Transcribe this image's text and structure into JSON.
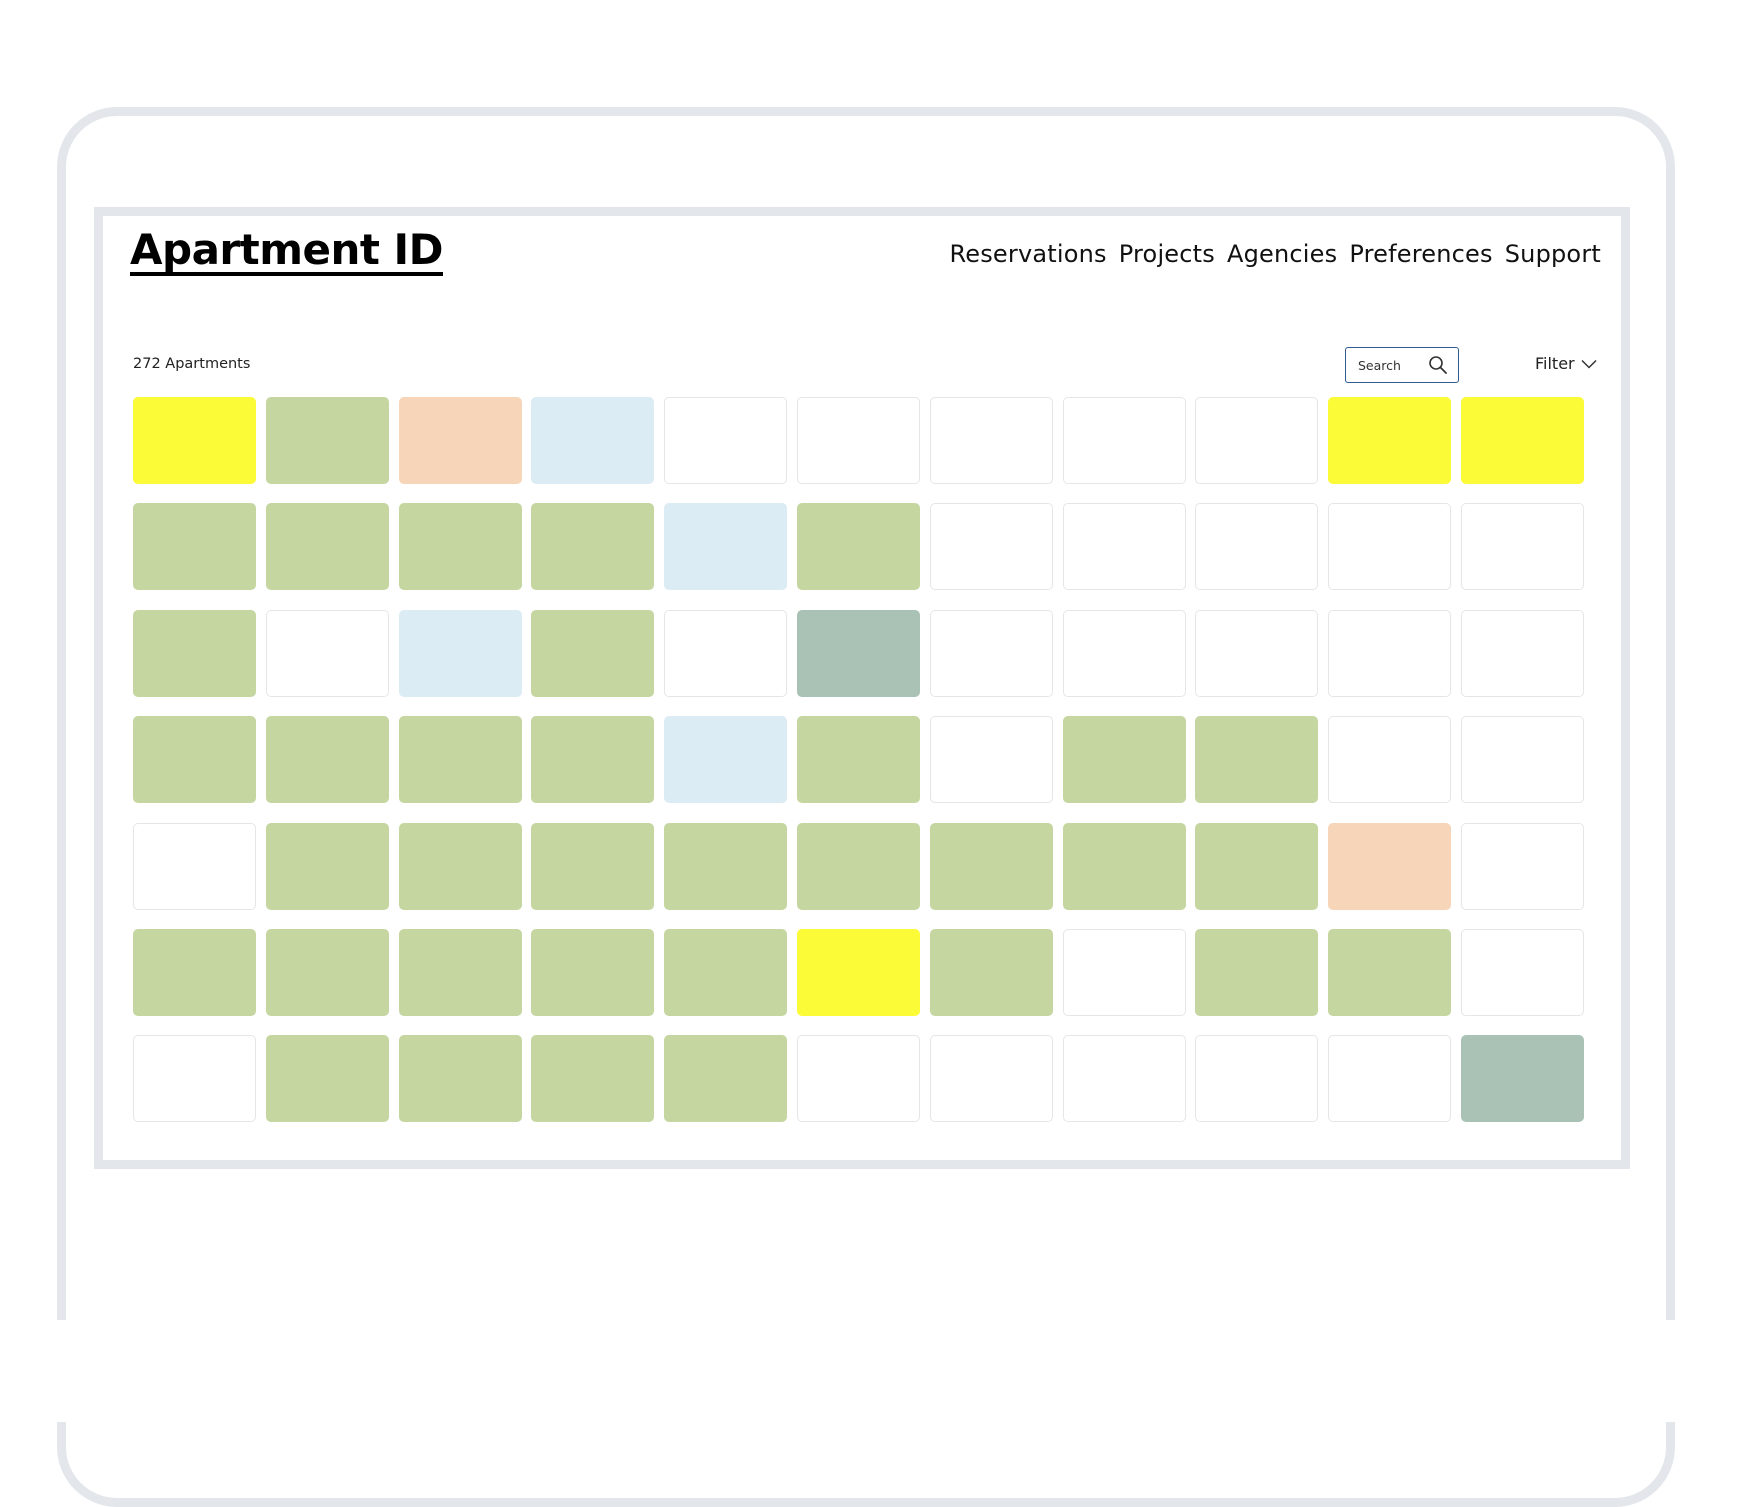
{
  "app": {
    "logo": "Apartment ID"
  },
  "nav": [
    {
      "label": "Reservations"
    },
    {
      "label": "Projects"
    },
    {
      "label": "Agencies"
    },
    {
      "label": "Preferences"
    },
    {
      "label": "Support"
    }
  ],
  "toolbar": {
    "count_label": "272 Apartments",
    "search_placeholder": "Search",
    "search_icon": "search-icon",
    "filter_label": "Filter",
    "filter_icon": "chevron-down-icon"
  },
  "status_colors": {
    "available": "#c5d6a0",
    "reserved": "#fbfb38",
    "pending": "#f7d5b9",
    "held": "#dcecf4",
    "sold": "#a9c2b5",
    "empty": "#ffffff"
  },
  "grid": {
    "columns": 11,
    "rows": [
      [
        "reserved",
        "available",
        "pending",
        "held",
        "empty",
        "empty",
        "empty",
        "empty",
        "empty",
        "reserved",
        "reserved"
      ],
      [
        "available",
        "available",
        "available",
        "available",
        "held",
        "available",
        "empty",
        "empty",
        "empty",
        "empty",
        "empty"
      ],
      [
        "available",
        "empty",
        "held",
        "available",
        "empty",
        "sold",
        "empty",
        "empty",
        "empty",
        "empty",
        "empty"
      ],
      [
        "available",
        "available",
        "available",
        "available",
        "held",
        "available",
        "empty",
        "available",
        "available",
        "empty",
        "empty"
      ],
      [
        "empty",
        "available",
        "available",
        "available",
        "available",
        "available",
        "available",
        "available",
        "available",
        "pending",
        "empty"
      ],
      [
        "available",
        "available",
        "available",
        "available",
        "available",
        "reserved",
        "available",
        "empty",
        "available",
        "available",
        "empty"
      ],
      [
        "empty",
        "available",
        "available",
        "available",
        "available",
        "empty",
        "empty",
        "empty",
        "empty",
        "empty",
        "sold"
      ]
    ]
  }
}
